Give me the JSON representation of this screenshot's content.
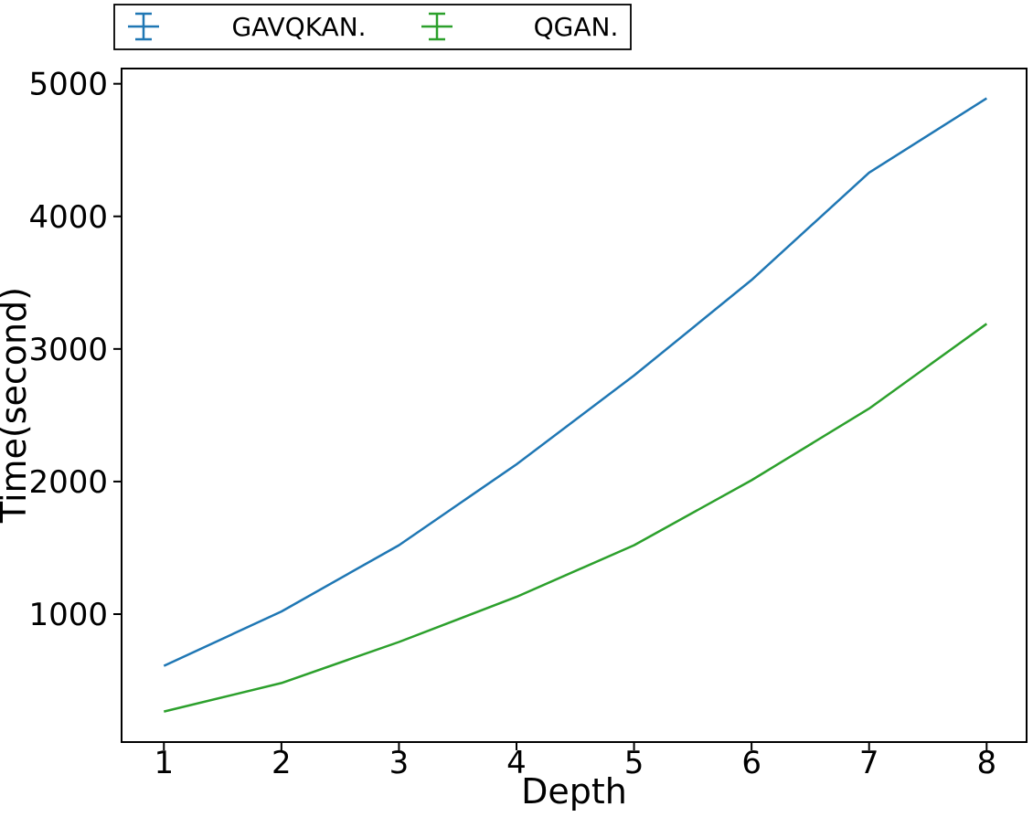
{
  "chart_data": {
    "type": "line",
    "title": "",
    "xlabel": "Depth",
    "ylabel": "Time(second)",
    "x": [
      1,
      2,
      3,
      4,
      5,
      6,
      7,
      8
    ],
    "xticks": [
      "1",
      "2",
      "3",
      "4",
      "5",
      "6",
      "7",
      "8"
    ],
    "yticks": [
      "1000",
      "2000",
      "3000",
      "4000",
      "5000"
    ],
    "ytick_values": [
      1000,
      2000,
      3000,
      4000,
      5000
    ],
    "xlim": [
      0.64,
      8.34
    ],
    "ylim": [
      35,
      5115
    ],
    "grid": false,
    "legend_position": "top-left-above-axes",
    "marker_style": "errorbar",
    "axis_color": "#000000",
    "series": [
      {
        "name": "GAVQKAN.",
        "color": "#1f77b4",
        "values": [
          610,
          1020,
          1520,
          2130,
          2800,
          3520,
          4330,
          4890
        ]
      },
      {
        "name": "QGAN.",
        "color": "#2ca02c",
        "values": [
          265,
          480,
          790,
          1130,
          1520,
          2010,
          2550,
          3190
        ]
      }
    ]
  }
}
